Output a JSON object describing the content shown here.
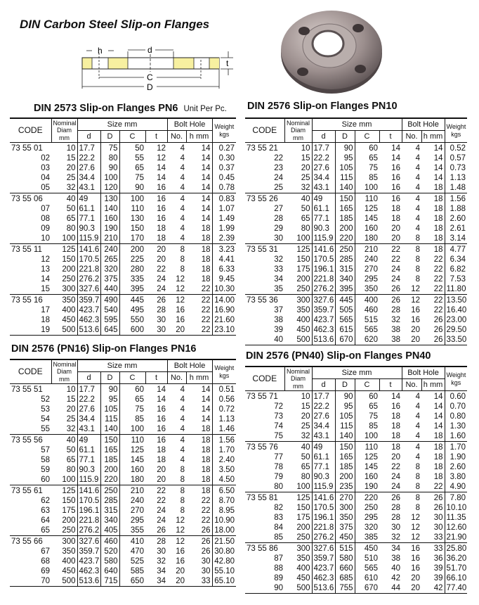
{
  "title": "DIN Carbon Steel Slip-on Flanges",
  "diagram": {
    "labels": {
      "h": "h",
      "d": "d",
      "t": "t",
      "C": "C",
      "D": "D"
    },
    "fill_color": "#f7f0a0"
  },
  "headers": {
    "code": "CODE",
    "nominal": "Nominal",
    "diam": "Diam",
    "nominal_unit": "mm",
    "size": "Size mm",
    "d": "d",
    "D": "D",
    "C": "C",
    "t": "t",
    "bolt_hole": "Bolt Hole",
    "no": "No.",
    "h": "h mm",
    "weight": "Weight",
    "weight_unit": "kgs"
  },
  "tables": [
    {
      "title": "DIN 2573 Slip-on Flanges PN6",
      "unit_note": "Unit Per Pc.",
      "groups": [
        [
          [
            "73 55 01",
            "10",
            "17.7",
            "75",
            "50",
            "12",
            "4",
            "14",
            "0.27"
          ],
          [
            "02",
            "15",
            "22.2",
            "80",
            "55",
            "12",
            "4",
            "14",
            "0.30"
          ],
          [
            "03",
            "20",
            "27.6",
            "90",
            "65",
            "14",
            "4",
            "14",
            "0.37"
          ],
          [
            "04",
            "25",
            "34.4",
            "100",
            "75",
            "14",
            "4",
            "14",
            "0.45"
          ],
          [
            "05",
            "32",
            "43.1",
            "120",
            "90",
            "16",
            "4",
            "14",
            "0.78"
          ]
        ],
        [
          [
            "73 55 06",
            "40",
            "49",
            "130",
            "100",
            "16",
            "4",
            "14",
            "0.83"
          ],
          [
            "07",
            "50",
            "61.1",
            "140",
            "110",
            "16",
            "4",
            "14",
            "1.07"
          ],
          [
            "08",
            "65",
            "77.1",
            "160",
            "130",
            "16",
            "4",
            "14",
            "1.49"
          ],
          [
            "09",
            "80",
            "90.3",
            "190",
            "150",
            "18",
            "4",
            "18",
            "1.99"
          ],
          [
            "10",
            "100",
            "115.9",
            "210",
            "170",
            "18",
            "4",
            "18",
            "2.39"
          ]
        ],
        [
          [
            "73 55 11",
            "125",
            "141.6",
            "240",
            "200",
            "20",
            "8",
            "18",
            "3.23"
          ],
          [
            "12",
            "150",
            "170.5",
            "265",
            "225",
            "20",
            "8",
            "18",
            "4.41"
          ],
          [
            "13",
            "200",
            "221.8",
            "320",
            "280",
            "22",
            "8",
            "18",
            "6.33"
          ],
          [
            "14",
            "250",
            "276.2",
            "375",
            "335",
            "24",
            "12",
            "18",
            "9.45"
          ],
          [
            "15",
            "300",
            "327.6",
            "440",
            "395",
            "24",
            "12",
            "22",
            "10.30"
          ]
        ],
        [
          [
            "73 55 16",
            "350",
            "359.7",
            "490",
            "445",
            "26",
            "12",
            "22",
            "14.00"
          ],
          [
            "17",
            "400",
            "423.7",
            "540",
            "495",
            "28",
            "16",
            "22",
            "16.90"
          ],
          [
            "18",
            "450",
            "462.3",
            "595",
            "550",
            "30",
            "16",
            "22",
            "21.60"
          ],
          [
            "19",
            "500",
            "513.6",
            "645",
            "600",
            "30",
            "20",
            "22",
            "23.10"
          ]
        ]
      ]
    },
    {
      "title": "DIN 2576 Slip-on Flanges PN10",
      "groups": [
        [
          [
            "73 55 21",
            "10",
            "17.7",
            "90",
            "60",
            "14",
            "4",
            "14",
            "0.52"
          ],
          [
            "22",
            "15",
            "22.2",
            "95",
            "65",
            "14",
            "4",
            "14",
            "0.57"
          ],
          [
            "23",
            "20",
            "27.6",
            "105",
            "75",
            "16",
            "4",
            "14",
            "0.73"
          ],
          [
            "24",
            "25",
            "34.4",
            "115",
            "85",
            "16",
            "4",
            "14",
            "1.13"
          ],
          [
            "25",
            "32",
            "43.1",
            "140",
            "100",
            "16",
            "4",
            "18",
            "1.48"
          ]
        ],
        [
          [
            "73 55 26",
            "40",
            "49",
            "150",
            "110",
            "16",
            "4",
            "18",
            "1.56"
          ],
          [
            "27",
            "50",
            "61.1",
            "165",
            "125",
            "18",
            "4",
            "18",
            "1.88"
          ],
          [
            "28",
            "65",
            "77.1",
            "185",
            "145",
            "18",
            "4",
            "18",
            "2.60"
          ],
          [
            "29",
            "80",
            "90.3",
            "200",
            "160",
            "20",
            "4",
            "18",
            "2.61"
          ],
          [
            "30",
            "100",
            "115.9",
            "220",
            "180",
            "20",
            "8",
            "18",
            "3.14"
          ]
        ],
        [
          [
            "73 55 31",
            "125",
            "141.6",
            "250",
            "210",
            "22",
            "8",
            "18",
            "4.77"
          ],
          [
            "32",
            "150",
            "170.5",
            "285",
            "240",
            "22",
            "8",
            "22",
            "6.34"
          ],
          [
            "33",
            "175",
            "196.1",
            "315",
            "270",
            "24",
            "8",
            "22",
            "6.82"
          ],
          [
            "34",
            "200",
            "221.8",
            "340",
            "295",
            "24",
            "8",
            "22",
            "7.53"
          ],
          [
            "35",
            "250",
            "276.2",
            "395",
            "350",
            "26",
            "12",
            "22",
            "11.80"
          ]
        ],
        [
          [
            "73 55 36",
            "300",
            "327.6",
            "445",
            "400",
            "26",
            "12",
            "22",
            "13.50"
          ],
          [
            "37",
            "350",
            "359.7",
            "505",
            "460",
            "28",
            "16",
            "22",
            "16.40"
          ],
          [
            "38",
            "400",
            "423.7",
            "565",
            "515",
            "32",
            "16",
            "26",
            "23.00"
          ],
          [
            "39",
            "450",
            "462.3",
            "615",
            "565",
            "38",
            "20",
            "26",
            "29.50"
          ],
          [
            "40",
            "500",
            "513.6",
            "670",
            "620",
            "38",
            "20",
            "26",
            "33.50"
          ]
        ]
      ]
    },
    {
      "title": "DIN 2576 (PN16) Slip-on Flanges PN16",
      "groups": [
        [
          [
            "73 55 51",
            "10",
            "17.7",
            "90",
            "60",
            "14",
            "4",
            "14",
            "0.51"
          ],
          [
            "52",
            "15",
            "22.2",
            "95",
            "65",
            "14",
            "4",
            "14",
            "0.56"
          ],
          [
            "53",
            "20",
            "27.6",
            "105",
            "75",
            "16",
            "4",
            "14",
            "0.72"
          ],
          [
            "54",
            "25",
            "34.4",
            "115",
            "85",
            "16",
            "4",
            "14",
            "1.13"
          ],
          [
            "55",
            "32",
            "43.1",
            "140",
            "100",
            "16",
            "4",
            "18",
            "1.46"
          ]
        ],
        [
          [
            "73 55 56",
            "40",
            "49",
            "150",
            "110",
            "16",
            "4",
            "18",
            "1.56"
          ],
          [
            "57",
            "50",
            "61.1",
            "165",
            "125",
            "18",
            "4",
            "18",
            "1.70"
          ],
          [
            "58",
            "65",
            "77.1",
            "185",
            "145",
            "18",
            "4",
            "18",
            "2.40"
          ],
          [
            "59",
            "80",
            "90.3",
            "200",
            "160",
            "20",
            "8",
            "18",
            "3.50"
          ],
          [
            "60",
            "100",
            "115.9",
            "220",
            "180",
            "20",
            "8",
            "18",
            "4.50"
          ]
        ],
        [
          [
            "73 55 61",
            "125",
            "141.6",
            "250",
            "210",
            "22",
            "8",
            "18",
            "6.50"
          ],
          [
            "62",
            "150",
            "170.5",
            "285",
            "240",
            "22",
            "8",
            "22",
            "8.70"
          ],
          [
            "63",
            "175",
            "196.1",
            "315",
            "270",
            "24",
            "8",
            "22",
            "8.95"
          ],
          [
            "64",
            "200",
            "221.8",
            "340",
            "295",
            "24",
            "12",
            "22",
            "10.90"
          ],
          [
            "65",
            "250",
            "276.2",
            "405",
            "355",
            "26",
            "12",
            "26",
            "18.00"
          ]
        ],
        [
          [
            "73 55 66",
            "300",
            "327.6",
            "460",
            "410",
            "28",
            "12",
            "26",
            "21.50"
          ],
          [
            "67",
            "350",
            "359.7",
            "520",
            "470",
            "30",
            "16",
            "26",
            "30.80"
          ],
          [
            "68",
            "400",
            "423.7",
            "580",
            "525",
            "32",
            "16",
            "30",
            "42.80"
          ],
          [
            "69",
            "450",
            "462.3",
            "640",
            "585",
            "34",
            "20",
            "30",
            "55.10"
          ],
          [
            "70",
            "500",
            "513.6",
            "715",
            "650",
            "34",
            "20",
            "33",
            "65.10"
          ]
        ]
      ]
    },
    {
      "title": "DIN 2576 (PN40) Slip-on Flanges PN40",
      "groups": [
        [
          [
            "73 55 71",
            "10",
            "17.7",
            "90",
            "60",
            "14",
            "4",
            "14",
            "0.60"
          ],
          [
            "72",
            "15",
            "22.2",
            "95",
            "65",
            "16",
            "4",
            "14",
            "0.70"
          ],
          [
            "73",
            "20",
            "27.6",
            "105",
            "75",
            "18",
            "4",
            "14",
            "0.80"
          ],
          [
            "74",
            "25",
            "34.4",
            "115",
            "85",
            "18",
            "4",
            "14",
            "1.30"
          ],
          [
            "75",
            "32",
            "43.1",
            "140",
            "100",
            "18",
            "4",
            "18",
            "1.60"
          ]
        ],
        [
          [
            "73 55 76",
            "40",
            "49",
            "150",
            "110",
            "18",
            "4",
            "18",
            "1.70"
          ],
          [
            "77",
            "50",
            "61.1",
            "165",
            "125",
            "20",
            "4",
            "18",
            "1.90"
          ],
          [
            "78",
            "65",
            "77.1",
            "185",
            "145",
            "22",
            "8",
            "18",
            "2.60"
          ],
          [
            "79",
            "80",
            "90.3",
            "200",
            "160",
            "24",
            "8",
            "18",
            "3.80"
          ],
          [
            "80",
            "100",
            "115.9",
            "235",
            "190",
            "24",
            "8",
            "22",
            "4.90"
          ]
        ],
        [
          [
            "73 55 81",
            "125",
            "141.6",
            "270",
            "220",
            "26",
            "8",
            "26",
            "7.80"
          ],
          [
            "82",
            "150",
            "170.5",
            "300",
            "250",
            "28",
            "8",
            "26",
            "10.10"
          ],
          [
            "83",
            "175",
            "196.1",
            "350",
            "295",
            "28",
            "12",
            "30",
            "11.35"
          ],
          [
            "84",
            "200",
            "221.8",
            "375",
            "320",
            "30",
            "12",
            "30",
            "12.60"
          ],
          [
            "85",
            "250",
            "276.2",
            "450",
            "385",
            "32",
            "12",
            "33",
            "21.90"
          ]
        ],
        [
          [
            "73 55 86",
            "300",
            "327.6",
            "515",
            "450",
            "34",
            "16",
            "33",
            "25.80"
          ],
          [
            "87",
            "350",
            "359.7",
            "580",
            "510",
            "38",
            "16",
            "36",
            "36.20"
          ],
          [
            "88",
            "400",
            "423.7",
            "660",
            "565",
            "40",
            "16",
            "39",
            "51.70"
          ],
          [
            "89",
            "450",
            "462.3",
            "685",
            "610",
            "42",
            "20",
            "39",
            "66.10"
          ],
          [
            "90",
            "500",
            "513.6",
            "755",
            "670",
            "44",
            "20",
            "42",
            "77.40"
          ]
        ]
      ]
    }
  ]
}
